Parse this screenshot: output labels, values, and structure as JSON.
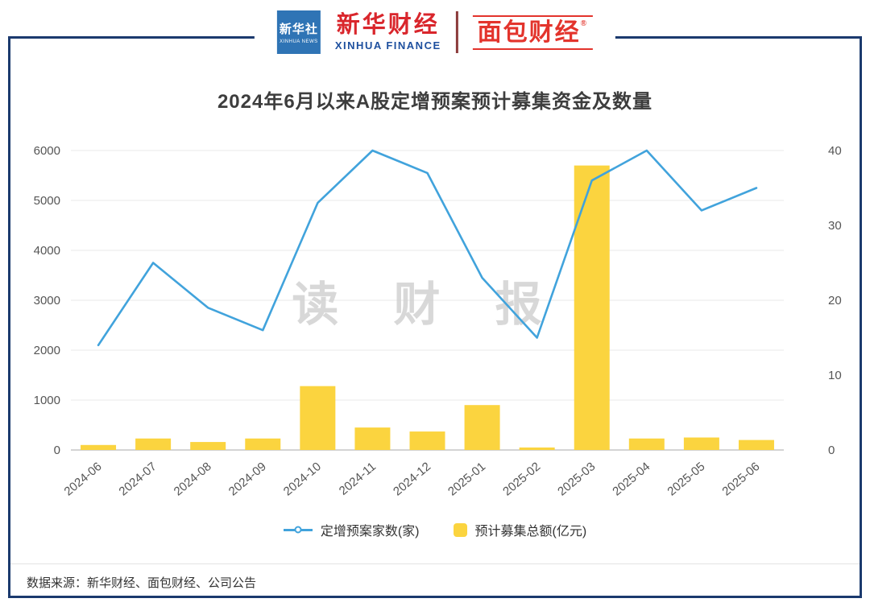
{
  "header": {
    "xinhua_news": {
      "name": "新华社",
      "sub": "XINHUA NEWS"
    },
    "xinhua_finance": {
      "name": "新华财经",
      "sub": "XINHUA FINANCE"
    },
    "bread_finance": {
      "name": "面包财经",
      "reg": "®"
    }
  },
  "chart_data": {
    "type": "bar+line",
    "title": "2024年6月以来A股定增预案预计募集资金及数量",
    "categories": [
      "2024-06",
      "2024-07",
      "2024-08",
      "2024-09",
      "2024-10",
      "2024-11",
      "2024-12",
      "2025-01",
      "2025-02",
      "2025-03",
      "2025-04",
      "2025-05",
      "2025-06"
    ],
    "series": [
      {
        "name": "定增预案家数(家)",
        "type": "line",
        "axis": "right",
        "color": "#41a3dc",
        "values": [
          14,
          25,
          19,
          16,
          33,
          40,
          37,
          23,
          15,
          36,
          40,
          32,
          35
        ]
      },
      {
        "name": "预计募集总额(亿元)",
        "type": "bar",
        "axis": "left",
        "color": "#fbd43f",
        "values": [
          100,
          230,
          160,
          230,
          1280,
          450,
          370,
          900,
          50,
          5700,
          230,
          250,
          200
        ]
      }
    ],
    "left_axis": {
      "min": 0,
      "max": 6000,
      "ticks": [
        0,
        1000,
        2000,
        3000,
        4000,
        5000,
        6000
      ]
    },
    "right_axis": {
      "min": 0,
      "max": 40,
      "ticks": [
        0,
        10,
        20,
        30,
        40
      ]
    },
    "grid": true,
    "legend_position": "bottom",
    "watermark": "读 财 报"
  },
  "footer": {
    "source": "数据来源：新华财经、面包财经、公司公告"
  }
}
